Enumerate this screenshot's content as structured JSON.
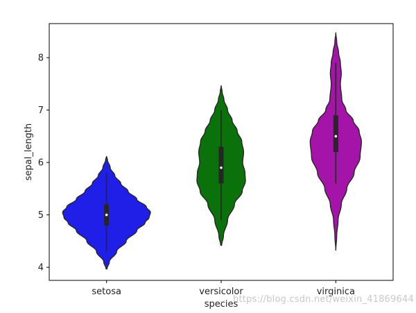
{
  "chart_data": {
    "type": "violin",
    "xlabel": "species",
    "ylabel": "sepal_length",
    "categories": [
      "setosa",
      "versicolor",
      "virginica"
    ],
    "ylim": [
      3.75,
      8.65
    ],
    "yticks": [
      4,
      5,
      6,
      7,
      8
    ],
    "grid": false,
    "colors": [
      "#1f1fe8",
      "#0b720b",
      "#a414a8"
    ],
    "violins": [
      {
        "category": "setosa",
        "min": 4.3,
        "max": 5.8,
        "q1": 4.8,
        "median": 5.0,
        "q3": 5.2,
        "kde_min": 3.97,
        "kde_max": 6.12,
        "profile": [
          [
            3.97,
            0.01
          ],
          [
            4.1,
            0.06
          ],
          [
            4.3,
            0.22
          ],
          [
            4.5,
            0.43
          ],
          [
            4.7,
            0.66
          ],
          [
            4.85,
            0.84
          ],
          [
            4.95,
            0.93
          ],
          [
            5.05,
            0.96
          ],
          [
            5.15,
            0.87
          ],
          [
            5.3,
            0.66
          ],
          [
            5.45,
            0.47
          ],
          [
            5.6,
            0.31
          ],
          [
            5.75,
            0.18
          ],
          [
            5.9,
            0.08
          ],
          [
            6.05,
            0.02
          ],
          [
            6.12,
            0.0
          ]
        ]
      },
      {
        "category": "versicolor",
        "min": 4.9,
        "max": 7.0,
        "q1": 5.6,
        "median": 5.9,
        "q3": 6.3,
        "kde_min": 4.42,
        "kde_max": 7.47,
        "profile": [
          [
            4.42,
            0.01
          ],
          [
            4.6,
            0.05
          ],
          [
            4.9,
            0.14
          ],
          [
            5.2,
            0.29
          ],
          [
            5.45,
            0.46
          ],
          [
            5.65,
            0.53
          ],
          [
            5.8,
            0.52
          ],
          [
            6.0,
            0.47
          ],
          [
            6.2,
            0.49
          ],
          [
            6.4,
            0.45
          ],
          [
            6.6,
            0.35
          ],
          [
            6.8,
            0.24
          ],
          [
            7.0,
            0.14
          ],
          [
            7.2,
            0.06
          ],
          [
            7.35,
            0.02
          ],
          [
            7.47,
            0.0
          ]
        ]
      },
      {
        "category": "virginica",
        "min": 5.6,
        "max": 7.9,
        "q1": 6.2,
        "median": 6.5,
        "q3": 6.9,
        "kde_min": 4.32,
        "kde_max": 8.48,
        "profile": [
          [
            4.32,
            0.0
          ],
          [
            4.6,
            0.02
          ],
          [
            4.9,
            0.05
          ],
          [
            5.2,
            0.12
          ],
          [
            5.5,
            0.24
          ],
          [
            5.8,
            0.4
          ],
          [
            6.1,
            0.53
          ],
          [
            6.4,
            0.56
          ],
          [
            6.6,
            0.51
          ],
          [
            6.8,
            0.38
          ],
          [
            7.0,
            0.22
          ],
          [
            7.2,
            0.13
          ],
          [
            7.5,
            0.1
          ],
          [
            7.7,
            0.12
          ],
          [
            7.9,
            0.1
          ],
          [
            8.1,
            0.06
          ],
          [
            8.3,
            0.02
          ],
          [
            8.48,
            0.0
          ]
        ]
      }
    ]
  },
  "watermark": "https://blog.csdn.net/weixin_41869644"
}
